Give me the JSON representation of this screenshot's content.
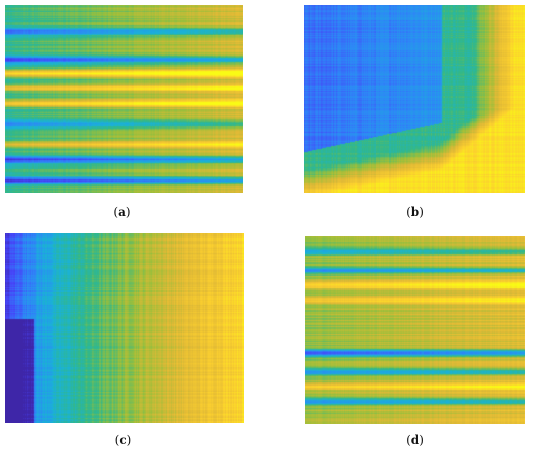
{
  "figure": {
    "panels": [
      {
        "letter": "a",
        "open": "(",
        "close": ")"
      },
      {
        "letter": "b",
        "open": "(",
        "close": ")"
      },
      {
        "letter": "c",
        "open": "(",
        "close": ")"
      },
      {
        "letter": "d",
        "open": "(",
        "close": ")"
      }
    ]
  },
  "colormap": [
    "#3e26a8",
    "#4743f8",
    "#2e87f7",
    "#1ab2d8",
    "#33b888",
    "#9bbf3b",
    "#e0b936",
    "#fcd02f",
    "#f9fb15"
  ],
  "chart_data": [
    {
      "type": "heatmap",
      "panel": "a",
      "structure": "horizontal-bands",
      "level": 0.48,
      "band_centers": [
        0.14,
        0.29,
        0.36,
        0.44,
        0.52,
        0.63,
        0.74,
        0.82,
        0.93
      ],
      "band_levels": [
        0.15,
        0.12,
        0.88,
        0.78,
        0.82,
        0.2,
        0.75,
        0.1,
        0.05
      ],
      "right_brightening": 0.25
    },
    {
      "type": "heatmap",
      "panel": "b",
      "structure": "corner-gradient",
      "low_region": [
        0.0,
        0.62,
        0.0,
        0.78
      ],
      "low_level": 0.2,
      "high_level": 0.92
    },
    {
      "type": "heatmap",
      "panel": "c",
      "structure": "horizontal-gradient",
      "left_level": 0.05,
      "right_level": 0.9,
      "dark_bottom_left": true
    },
    {
      "type": "heatmap",
      "panel": "d",
      "structure": "horizontal-bands",
      "level": 0.62,
      "band_centers": [
        0.08,
        0.18,
        0.26,
        0.34,
        0.62,
        0.72,
        0.8,
        0.88
      ],
      "band_levels": [
        0.35,
        0.28,
        0.88,
        0.85,
        0.1,
        0.25,
        0.85,
        0.3
      ],
      "right_brightening": 0.15
    }
  ]
}
